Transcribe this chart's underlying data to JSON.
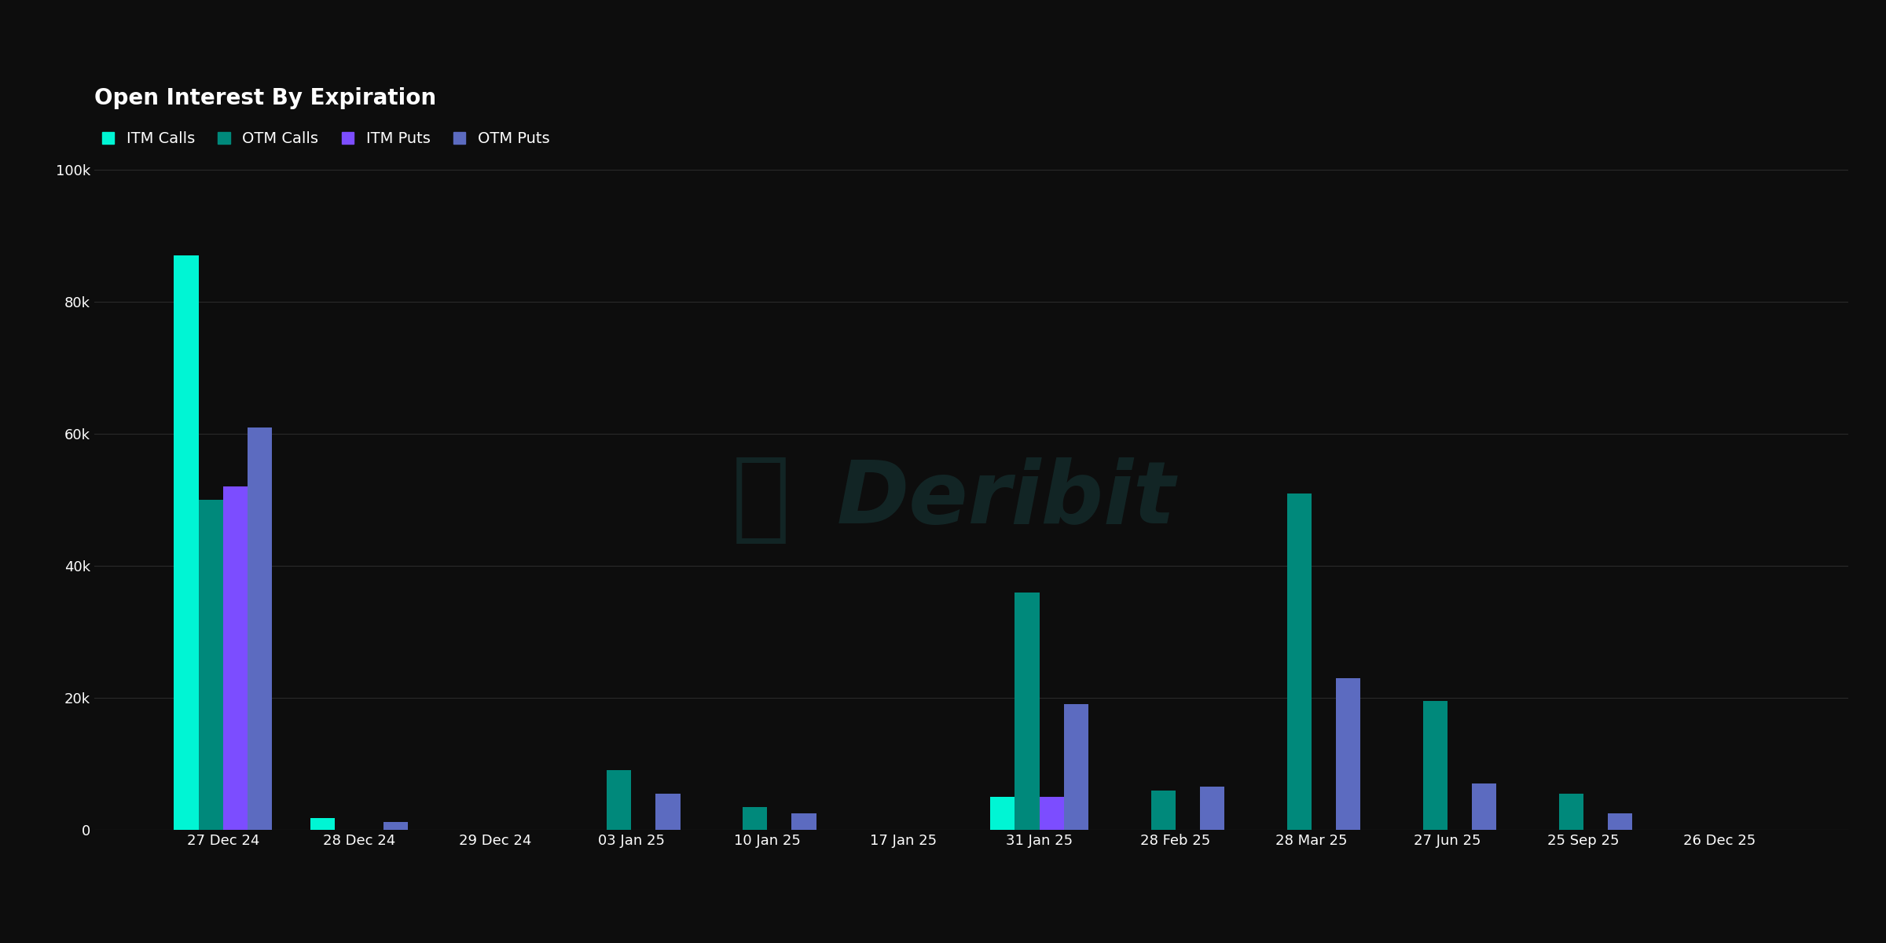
{
  "title": "Open Interest By Expiration",
  "background_color": "#0d0d0d",
  "text_color": "#ffffff",
  "grid_color": "#2a2a2a",
  "categories": [
    "27 Dec 24",
    "28 Dec 24",
    "29 Dec 24",
    "03 Jan 25",
    "10 Jan 25",
    "17 Jan 25",
    "31 Jan 25",
    "28 Feb 25",
    "28 Mar 25",
    "27 Jun 25",
    "25 Sep 25",
    "26 Dec 25"
  ],
  "series": {
    "ITM Calls": {
      "color": "#00f5d4",
      "values": [
        87000,
        1800,
        0,
        0,
        0,
        0,
        5000,
        0,
        0,
        0,
        0,
        0
      ]
    },
    "OTM Calls": {
      "color": "#00897b",
      "values": [
        50000,
        0,
        0,
        9000,
        3500,
        0,
        36000,
        6000,
        51000,
        19500,
        5500,
        0
      ]
    },
    "ITM Puts": {
      "color": "#7c4dff",
      "values": [
        52000,
        0,
        0,
        0,
        0,
        0,
        5000,
        0,
        0,
        0,
        0,
        0
      ]
    },
    "OTM Puts": {
      "color": "#5c6bc0",
      "values": [
        61000,
        1200,
        0,
        5500,
        2500,
        0,
        19000,
        6500,
        23000,
        7000,
        2500,
        0
      ]
    }
  },
  "ylim": [
    0,
    100000
  ],
  "yticks": [
    0,
    20000,
    40000,
    60000,
    80000,
    100000
  ],
  "title_fontsize": 20,
  "legend_fontsize": 14,
  "tick_fontsize": 13,
  "bar_width": 0.18,
  "watermark": "Deribit"
}
